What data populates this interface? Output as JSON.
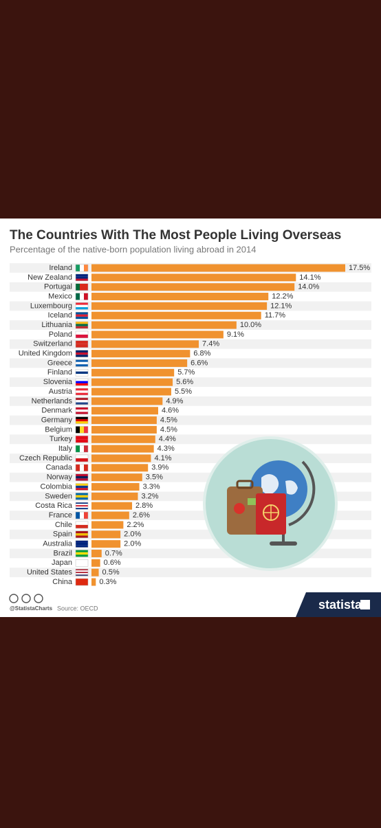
{
  "chart_data": {
    "type": "bar",
    "orientation": "horizontal",
    "title": "The Countries With The Most People Living Overseas",
    "subtitle": "Percentage of the native-born population living abroad in 2014",
    "categories": [
      "Ireland",
      "New Zealand",
      "Portugal",
      "Mexico",
      "Luxembourg",
      "Iceland",
      "Lithuania",
      "Poland",
      "Switzerland",
      "United Kingdom",
      "Greece",
      "Finland",
      "Slovenia",
      "Austria",
      "Netherlands",
      "Denmark",
      "Germany",
      "Belgium",
      "Turkey",
      "Italy",
      "Czech Republic",
      "Canada",
      "Norway",
      "Colombia",
      "Sweden",
      "Costa Rica",
      "France",
      "Chile",
      "Spain",
      "Australia",
      "Brazil",
      "Japan",
      "United States",
      "China"
    ],
    "values": [
      17.5,
      14.1,
      14.0,
      12.2,
      12.1,
      11.7,
      10.0,
      9.1,
      7.4,
      6.8,
      6.6,
      5.7,
      5.6,
      5.5,
      4.9,
      4.6,
      4.5,
      4.5,
      4.4,
      4.3,
      4.1,
      3.9,
      3.5,
      3.3,
      3.2,
      2.8,
      2.6,
      2.2,
      2.0,
      2.0,
      0.7,
      0.6,
      0.5,
      0.3
    ],
    "value_labels": [
      "17.5%",
      "14.1%",
      "14.0%",
      "12.2%",
      "12.1%",
      "11.7%",
      "10.0%",
      "9.1%",
      "7.4%",
      "6.8%",
      "6.6%",
      "5.7%",
      "5.6%",
      "5.5%",
      "4.9%",
      "4.6%",
      "4.5%",
      "4.5%",
      "4.4%",
      "4.3%",
      "4.1%",
      "3.9%",
      "3.5%",
      "3.3%",
      "3.2%",
      "2.8%",
      "2.6%",
      "2.2%",
      "2.0%",
      "2.0%",
      "0.7%",
      "0.6%",
      "0.5%",
      "0.3%"
    ],
    "color": "#f0922f",
    "xlim": [
      0,
      17.5
    ],
    "handle": "@StatistaCharts",
    "source": "Source: OECD",
    "brand": "statista"
  }
}
